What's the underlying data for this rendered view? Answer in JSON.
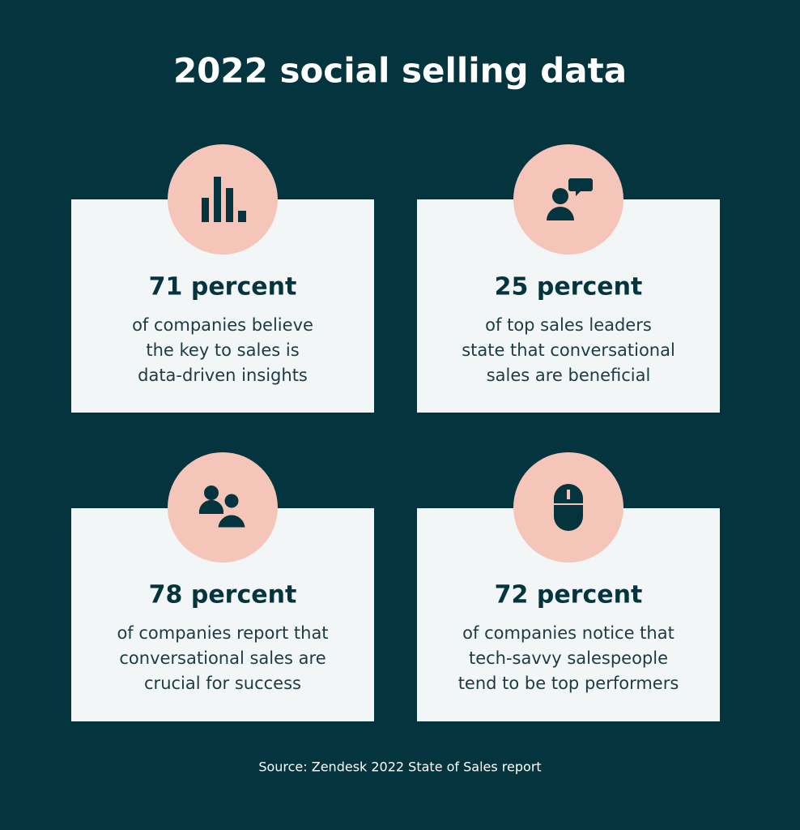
{
  "title": "2022 social selling data",
  "cards": [
    {
      "headline": "71 percent",
      "lines": [
        "of companies believe",
        "the key to sales is",
        "data-driven insights"
      ]
    },
    {
      "headline": "25 percent",
      "lines": [
        "of top sales leaders",
        "state that conversational",
        "sales are beneficial"
      ]
    },
    {
      "headline": "78 percent",
      "lines": [
        "of companies report that",
        "conversational sales are",
        "crucial for success"
      ]
    },
    {
      "headline": "72 percent",
      "lines": [
        "of companies notice that",
        "tech-savvy salespeople",
        "tend to be top performers"
      ]
    }
  ],
  "source": "Source: Zendesk 2022 State of Sales report"
}
